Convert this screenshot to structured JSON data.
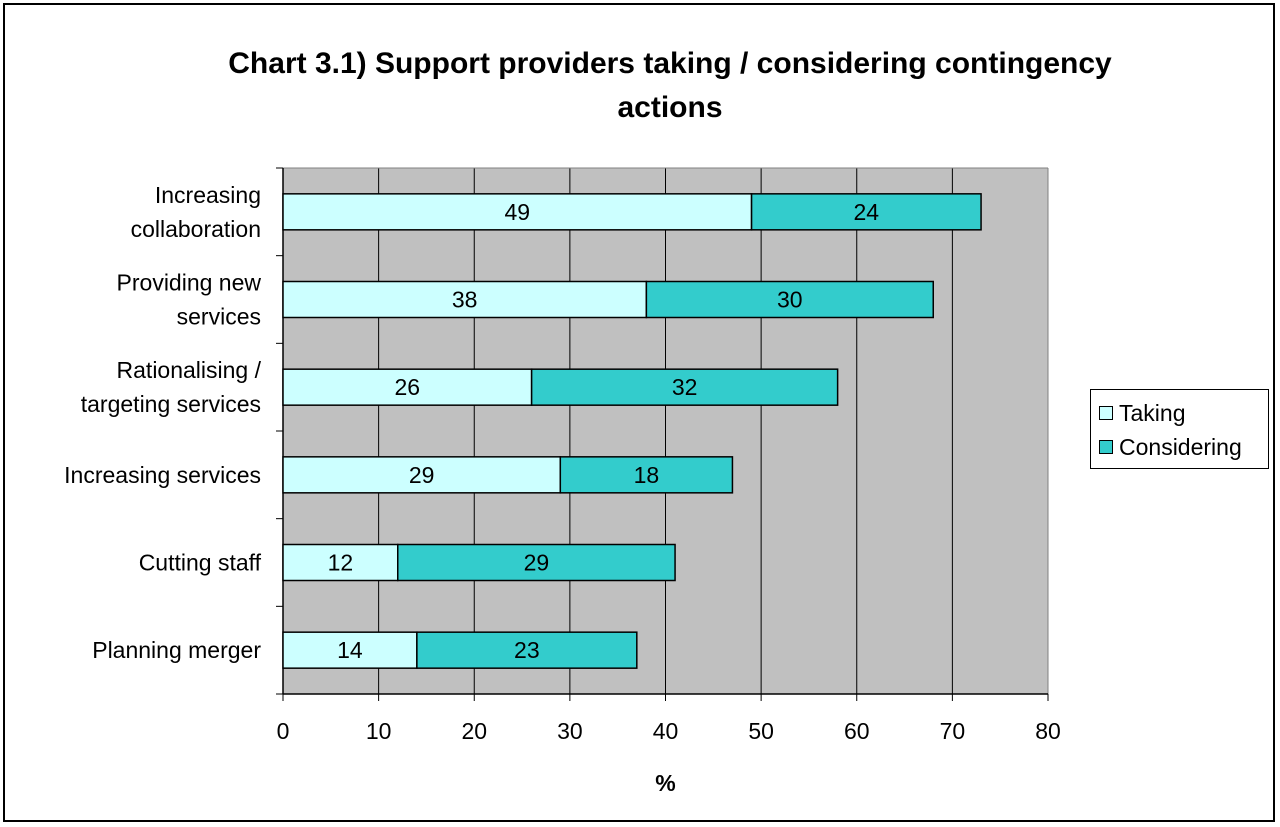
{
  "chart_data": {
    "type": "bar",
    "orientation": "horizontal",
    "stacked": true,
    "title_lines": [
      "Chart 3.1) Support providers taking / considering contingency",
      "actions"
    ],
    "xlabel": "%",
    "ylabel": "",
    "xlim": [
      0,
      80
    ],
    "x_ticks": [
      0,
      10,
      20,
      30,
      40,
      50,
      60,
      70,
      80
    ],
    "grid": "vertical",
    "categories": [
      [
        "Increasing",
        "collaboration"
      ],
      [
        "Providing new",
        "services"
      ],
      [
        "Rationalising /",
        "targeting services"
      ],
      [
        "Increasing services"
      ],
      [
        "Cutting staff"
      ],
      [
        "Planning merger"
      ]
    ],
    "series": [
      {
        "name": "Taking",
        "color": "#ccffff",
        "values": [
          49,
          38,
          26,
          29,
          12,
          14
        ]
      },
      {
        "name": "Considering",
        "color": "#33cccc",
        "values": [
          24,
          30,
          32,
          18,
          29,
          23
        ]
      }
    ],
    "plot_background": "#c0c0c0",
    "legend_position": "right"
  }
}
